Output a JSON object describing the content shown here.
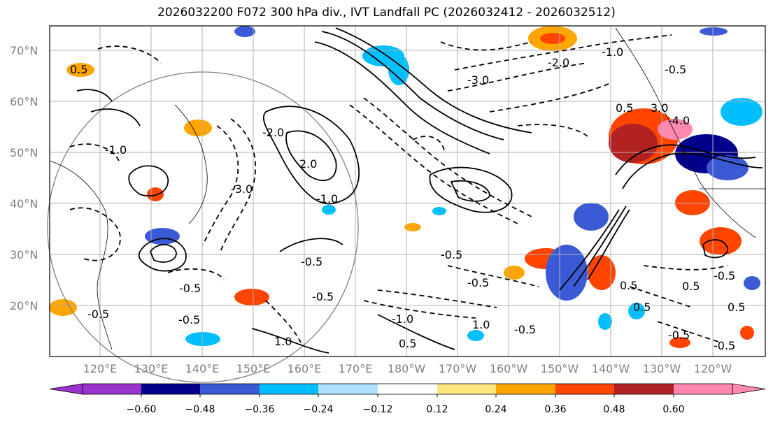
{
  "title": "2026032200 F072 300 hPa div., IVT Landfall PC (2026032412 - 2026032512)",
  "map": {
    "lon_labels": [
      "120°E",
      "130°E",
      "140°E",
      "150°E",
      "160°E",
      "170°E",
      "180°W",
      "170°W",
      "160°W",
      "150°W",
      "140°W",
      "130°W",
      "120°W"
    ],
    "lat_labels": [
      "70°N",
      "60°N",
      "50°N",
      "40°N",
      "30°N",
      "20°N"
    ],
    "contour_labels": [
      "-0.5",
      "-0.5",
      "-0.5",
      "-1.0",
      "-0.5",
      "-0.5",
      "-0.5",
      "-0.5",
      "0.5",
      "0.5",
      "1.0",
      "2.0",
      "-3.0",
      "-2.0",
      "3.0",
      "-4.0",
      "-1.0",
      "0.5",
      "-0.5",
      "0.5",
      "-0.5",
      "0.5",
      "-0.5",
      "-1.0",
      "1.0",
      "-0.5",
      "0.5",
      "-3.0",
      "-2.0",
      "-1.0",
      "0.5",
      "-0.5"
    ]
  },
  "colorbar": {
    "ticks": [
      "−0.60",
      "−0.48",
      "−0.36",
      "−0.24",
      "−0.12",
      "0.12",
      "0.24",
      "0.36",
      "0.48",
      "0.60"
    ],
    "colors": [
      "#9932cc",
      "#00008b",
      "#3b5bd6",
      "#00bfff",
      "#b0e2ff",
      "#ffffff",
      "#ffe680",
      "#ffa500",
      "#ff4500",
      "#b22222",
      "#ff88b0"
    ]
  }
}
